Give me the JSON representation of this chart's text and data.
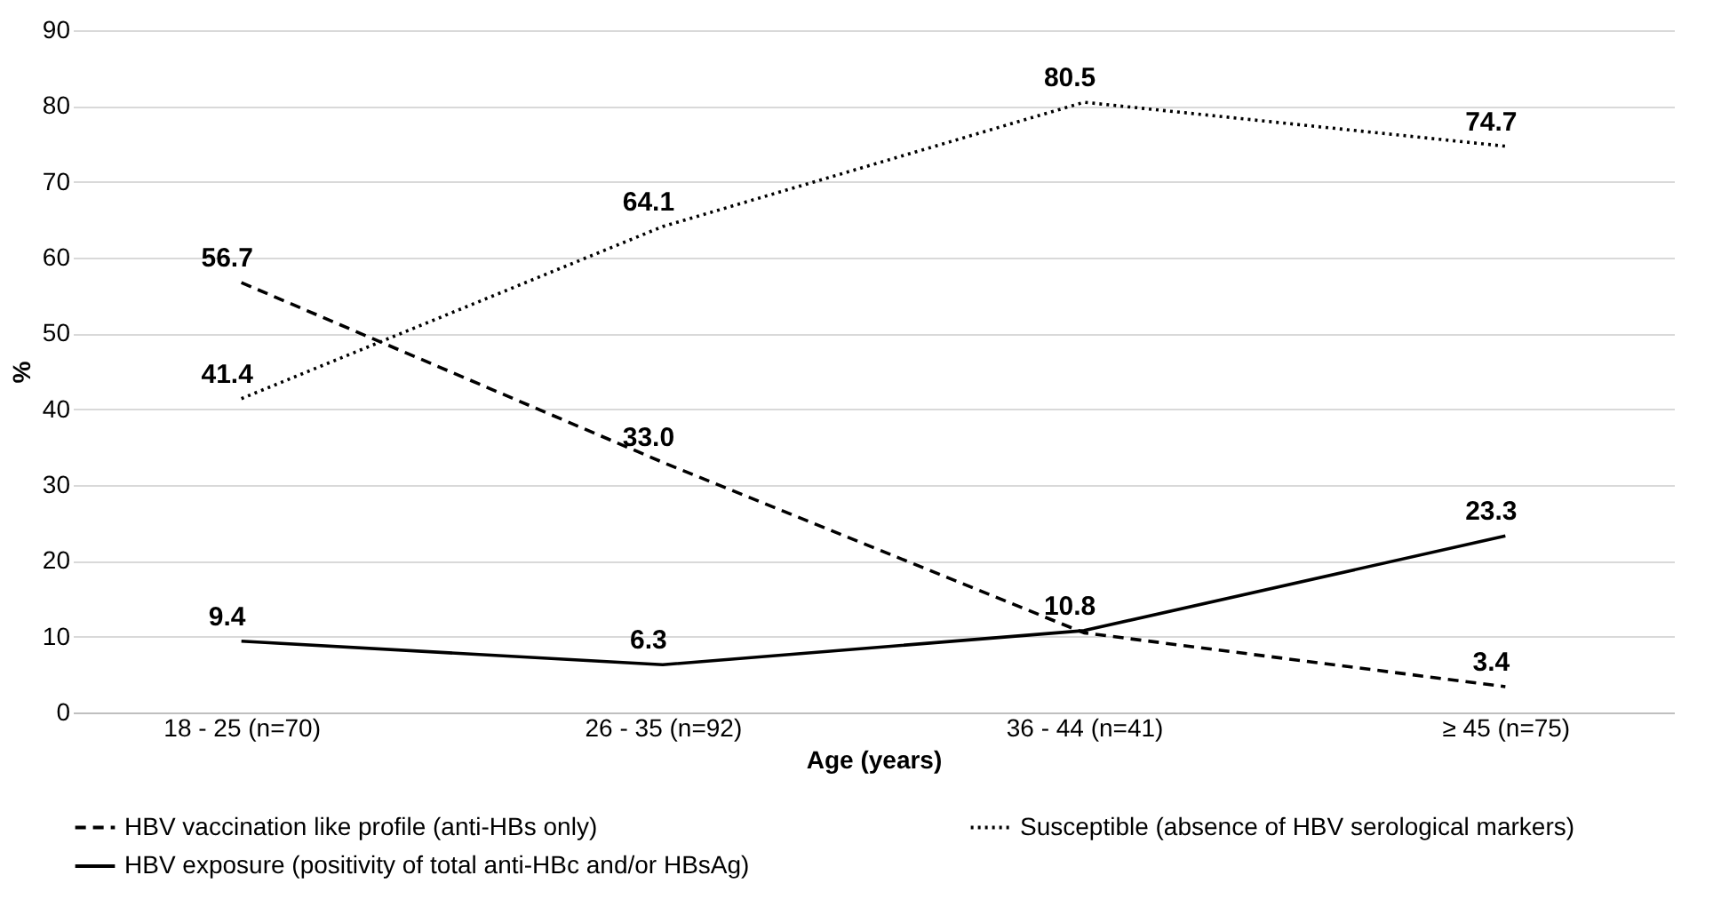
{
  "chart_data": {
    "type": "line",
    "xlabel": "Age (years)",
    "ylabel": "%",
    "categories": [
      "18 - 25 (n=70)",
      "26 - 35 (n=92)",
      "36 - 44 (n=41)",
      "≥ 45 (n=75)"
    ],
    "ylim": [
      0,
      90
    ],
    "yticks": [
      0,
      10,
      20,
      30,
      40,
      50,
      60,
      70,
      80,
      90
    ],
    "grid": "y",
    "legend": "bottom",
    "marker": "none",
    "series": [
      {
        "name": "HBV vaccination like profile (anti-HBs only)",
        "color": "#000000",
        "line_style": "dashed",
        "values": [
          56.7,
          33.0,
          10.5,
          3.4
        ],
        "value_labels": [
          "56.7",
          "33.0",
          null,
          "3.4"
        ]
      },
      {
        "name": "Susceptible (absence of HBV serological markers)",
        "color": "#000000",
        "line_style": "dotted",
        "values": [
          41.4,
          64.1,
          80.5,
          74.7
        ],
        "value_labels": [
          "41.4",
          "64.1",
          "80.5",
          "74.7"
        ]
      },
      {
        "name": "HBV exposure (positivity of total anti-HBc and/or HBsAg)",
        "color": "#000000",
        "line_style": "solid",
        "values": [
          9.4,
          6.3,
          10.8,
          23.3
        ],
        "value_labels": [
          "9.4",
          "6.3",
          "10.8",
          "23.3"
        ]
      }
    ]
  }
}
